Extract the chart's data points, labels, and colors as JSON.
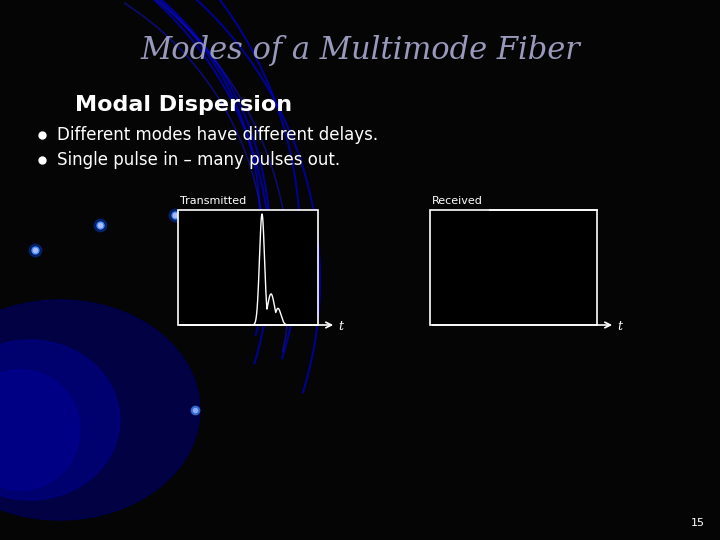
{
  "title": "Modes of a Multimode Fiber",
  "subtitle": "Modal Dispersion",
  "bullet1": "Different modes have different delays.",
  "bullet2": "Single pulse in – many pulses out.",
  "bg_color": "#050505",
  "title_color": "#9999bb",
  "subtitle_color": "#ffffff",
  "bullet_color": "#ffffff",
  "page_number": "15",
  "tx_label": "Transmitted",
  "rx_label": "Received",
  "t_label": "t",
  "title_fontsize": 22,
  "subtitle_fontsize": 16,
  "bullet_fontsize": 12,
  "diagram_fontsize": 8
}
